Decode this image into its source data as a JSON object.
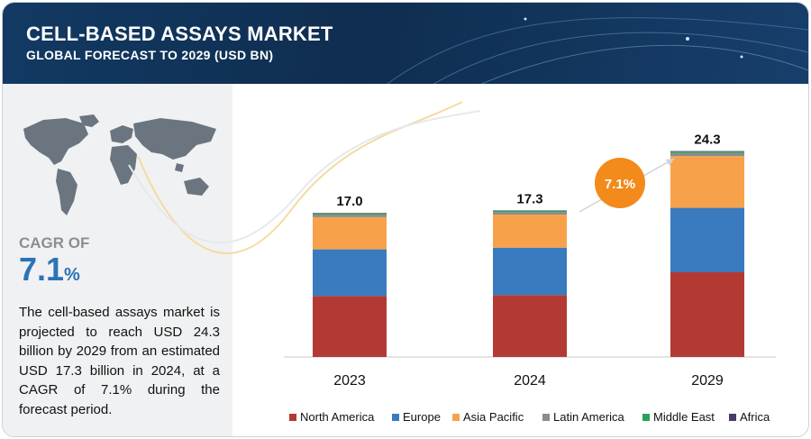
{
  "header": {
    "title": "CELL-BASED ASSAYS MARKET",
    "subtitle": "GLOBAL FORECAST TO 2029 (USD BN)"
  },
  "left_panel": {
    "cagr_label": "CAGR OF",
    "cagr_value": "7.1",
    "cagr_unit": "%",
    "description": "The cell-based assays market is projected to reach USD 24.3 billion by 2029 from an estimated USD 17.3 billion in 2024, at a CAGR of 7.1% during the forecast period."
  },
  "chart_data": {
    "type": "bar",
    "stacked": true,
    "categories": [
      "2023",
      "2024",
      "2029"
    ],
    "totals": [
      "17.0",
      "17.3",
      "24.3"
    ],
    "badge": "7.1%",
    "series": [
      {
        "name": "North America",
        "color": "#b33a33",
        "values": [
          7.2,
          7.3,
          10.0
        ]
      },
      {
        "name": "Europe",
        "color": "#3a7abf",
        "values": [
          5.5,
          5.6,
          7.6
        ]
      },
      {
        "name": "Asia Pacific",
        "color": "#f7a24a",
        "values": [
          3.8,
          3.9,
          6.1
        ]
      },
      {
        "name": "Latin America",
        "color": "#8c8c8c",
        "values": [
          0.3,
          0.3,
          0.4
        ]
      },
      {
        "name": "Middle East",
        "color": "#2aa15a",
        "values": [
          0.15,
          0.15,
          0.15
        ]
      },
      {
        "name": "Africa",
        "color": "#4b3a6b",
        "values": [
          0.05,
          0.05,
          0.05
        ]
      }
    ],
    "legend_position": "bottom"
  }
}
